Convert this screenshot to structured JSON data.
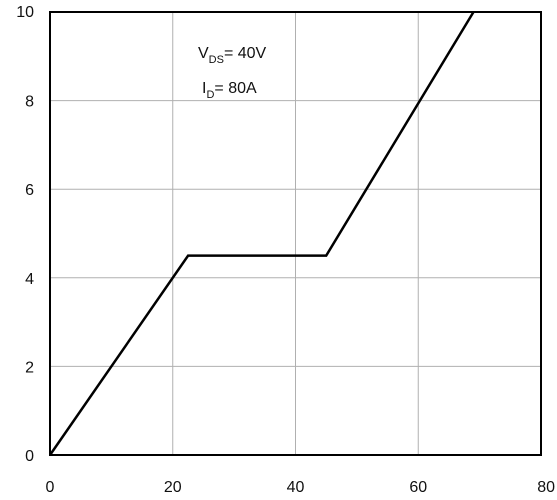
{
  "chart_data": {
    "type": "line",
    "title": "",
    "xlabel": "",
    "ylabel": "",
    "xlim": [
      0,
      80
    ],
    "ylim": [
      0,
      10
    ],
    "xticks": [
      0,
      20,
      40,
      60,
      80
    ],
    "yticks": [
      0,
      2,
      4,
      6,
      8,
      10
    ],
    "grid": true,
    "series": [
      {
        "x": [
          0,
          22.5,
          45,
          69
        ],
        "y": [
          0,
          4.5,
          4.5,
          10
        ]
      }
    ],
    "annotations": {
      "vds": {
        "main": "V",
        "sub": "DS",
        "rest": "= 40V"
      },
      "id": {
        "main": "I",
        "sub": "D",
        "rest": "= 80A"
      }
    },
    "line_color": "#000000",
    "grid_color": "#b0b0b0"
  }
}
